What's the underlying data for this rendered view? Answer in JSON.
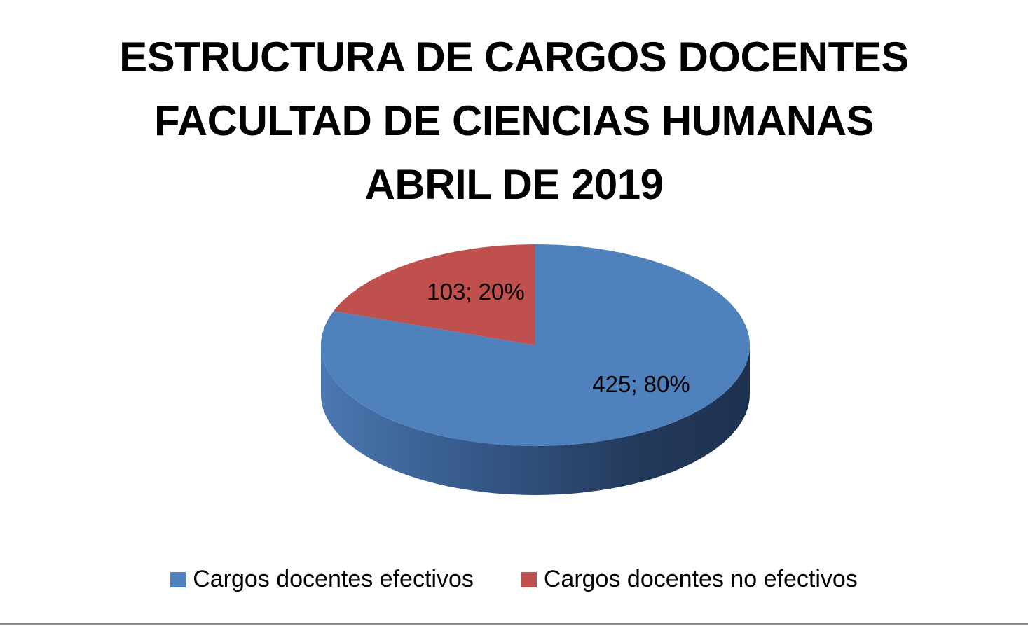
{
  "chart_data": {
    "type": "pie",
    "title_lines": [
      "ESTRUCTURA DE CARGOS DOCENTES",
      "FACULTAD DE CIENCIAS HUMANAS",
      "ABRIL DE 2019"
    ],
    "categories": [
      "Cargos docentes efectivos",
      "Cargos docentes no efectivos"
    ],
    "values": [
      425,
      103
    ],
    "percentages": [
      80,
      20
    ],
    "data_labels": [
      "425; 80%",
      "103; 20%"
    ],
    "colors": [
      "#4f81bd",
      "#c0504d"
    ],
    "style": "3d-pie",
    "legend_position": "bottom"
  }
}
